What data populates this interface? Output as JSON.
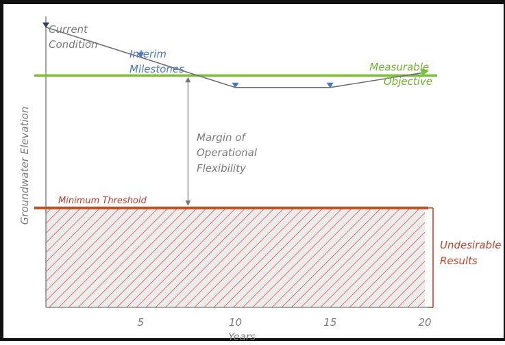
{
  "chart_data": {
    "type": "line",
    "title": "",
    "xlabel": "Years",
    "ylabel": "Groundwater Elevation",
    "x_ticks": [
      5,
      10,
      15,
      20
    ],
    "xlim": [
      0,
      20
    ],
    "ylim": [
      0,
      100
    ],
    "series": [
      {
        "x": [
          0,
          5,
          8,
          10,
          15,
          20
        ],
        "y": [
          93,
          83,
          77,
          73,
          73,
          78
        ]
      }
    ],
    "current_condition": {
      "x": 0,
      "y": 93
    },
    "interim_milestones": [
      {
        "x": 5,
        "y": 83
      },
      {
        "x": 10,
        "y": 73
      },
      {
        "x": 15,
        "y": 73
      }
    ],
    "measurable_objective": {
      "y": 77,
      "end_x": 20,
      "end_y": 78
    },
    "minimum_threshold": 33,
    "margin_x": 7.5,
    "colors": {
      "trajectory": "#6e6e78",
      "marker": "#4a78c4",
      "current_marker": "#2c3e6a",
      "objective": "#7cc03a",
      "threshold": "#b5532a",
      "hatch": "#d9534f",
      "hatch_bg": "#ececec",
      "axis": "#777777",
      "text_gray": "#7a7a7a",
      "text_blue": "#4a78c4",
      "text_green": "#6fb42c",
      "text_red": "#c0392b",
      "undesirable": "#c8442a"
    },
    "annotations": {
      "current_condition": [
        "Current",
        "Condition"
      ],
      "interim_milestones": [
        "Interim",
        "Milestones"
      ],
      "measurable_objective": [
        "Measurable",
        "Objective"
      ],
      "margin": [
        "Margin of",
        "Operational",
        "Flexibility"
      ],
      "minimum_threshold": "Minimum Threshold",
      "undesirable_results": [
        "Undesirable",
        "Results"
      ]
    }
  }
}
